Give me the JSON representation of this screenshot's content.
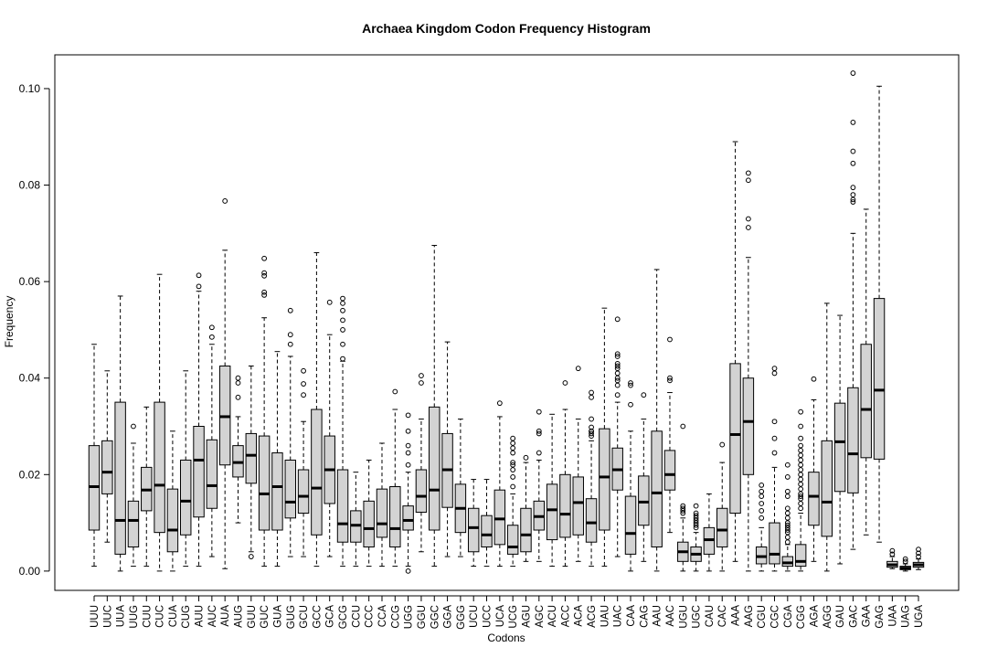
{
  "chart_data": {
    "type": "boxplot",
    "title": "Archaea  Kingdom Codon Frequency Histogram",
    "xlabel": "Codons",
    "ylabel": "Frequency",
    "ylim": [
      -0.004,
      0.107
    ],
    "yticks": [
      0.0,
      0.02,
      0.04,
      0.06,
      0.08,
      0.1
    ],
    "ytick_labels": [
      "0.00",
      "0.02",
      "0.04",
      "0.06",
      "0.08",
      "0.10"
    ],
    "grid": false,
    "box_color": "#d3d3d3",
    "line_color": "#000000",
    "categories": [
      "UUU",
      "UUC",
      "UUA",
      "UUG",
      "CUU",
      "CUC",
      "CUA",
      "CUG",
      "AUU",
      "AUC",
      "AUA",
      "AUG",
      "GUU",
      "GUC",
      "GUA",
      "GUG",
      "GCU",
      "GCC",
      "GCA",
      "GCG",
      "CCU",
      "CCC",
      "CCA",
      "CCG",
      "UGG",
      "GGU",
      "GGC",
      "GGA",
      "GGG",
      "UCU",
      "UCC",
      "UCA",
      "UCG",
      "AGU",
      "AGC",
      "ACU",
      "ACC",
      "ACA",
      "ACG",
      "UAU",
      "UAC",
      "CAA",
      "CAG",
      "AAU",
      "AAC",
      "UGU",
      "UGC",
      "CAU",
      "CAC",
      "AAA",
      "AAG",
      "CGU",
      "CGC",
      "CGA",
      "CGG",
      "AGA",
      "AGG",
      "GAU",
      "GAC",
      "GAA",
      "GAG",
      "UAA",
      "UAG",
      "UGA"
    ],
    "boxes": [
      {
        "min": 0.001,
        "q1": 0.0085,
        "median": 0.0175,
        "q3": 0.026,
        "max": 0.047,
        "outliers": []
      },
      {
        "min": 0.006,
        "q1": 0.016,
        "median": 0.0205,
        "q3": 0.027,
        "max": 0.0415,
        "outliers": []
      },
      {
        "min": 0.0,
        "q1": 0.0035,
        "median": 0.0105,
        "q3": 0.035,
        "max": 0.057,
        "outliers": []
      },
      {
        "min": 0.001,
        "q1": 0.005,
        "median": 0.0105,
        "q3": 0.0145,
        "max": 0.0265,
        "outliers": [
          0.03
        ]
      },
      {
        "min": 0.001,
        "q1": 0.0125,
        "median": 0.0168,
        "q3": 0.0215,
        "max": 0.034,
        "outliers": []
      },
      {
        "min": 0.0,
        "q1": 0.008,
        "median": 0.0178,
        "q3": 0.035,
        "max": 0.0615,
        "outliers": []
      },
      {
        "min": 0.0,
        "q1": 0.004,
        "median": 0.0085,
        "q3": 0.017,
        "max": 0.029,
        "outliers": []
      },
      {
        "min": 0.001,
        "q1": 0.0075,
        "median": 0.0145,
        "q3": 0.023,
        "max": 0.0415,
        "outliers": []
      },
      {
        "min": 0.001,
        "q1": 0.0112,
        "median": 0.023,
        "q3": 0.03,
        "max": 0.058,
        "outliers": [
          0.059,
          0.0613
        ]
      },
      {
        "min": 0.003,
        "q1": 0.013,
        "median": 0.0177,
        "q3": 0.0272,
        "max": 0.047,
        "outliers": [
          0.0485,
          0.0505
        ]
      },
      {
        "min": 0.0005,
        "q1": 0.022,
        "median": 0.032,
        "q3": 0.0425,
        "max": 0.0665,
        "outliers": [
          0.0767
        ]
      },
      {
        "min": 0.01,
        "q1": 0.0195,
        "median": 0.0225,
        "q3": 0.026,
        "max": 0.032,
        "outliers": [
          0.036,
          0.039,
          0.04
        ]
      },
      {
        "min": 0.004,
        "q1": 0.0182,
        "median": 0.024,
        "q3": 0.0285,
        "max": 0.0425,
        "outliers": [
          0.003
        ]
      },
      {
        "min": 0.001,
        "q1": 0.0085,
        "median": 0.016,
        "q3": 0.028,
        "max": 0.0525,
        "outliers": [
          0.0572,
          0.0578,
          0.0612,
          0.0618,
          0.0648
        ]
      },
      {
        "min": 0.001,
        "q1": 0.0085,
        "median": 0.0175,
        "q3": 0.0245,
        "max": 0.0455,
        "outliers": []
      },
      {
        "min": 0.003,
        "q1": 0.011,
        "median": 0.0143,
        "q3": 0.023,
        "max": 0.0445,
        "outliers": [
          0.047,
          0.049,
          0.054
        ]
      },
      {
        "min": 0.003,
        "q1": 0.012,
        "median": 0.0155,
        "q3": 0.021,
        "max": 0.031,
        "outliers": [
          0.0365,
          0.0388,
          0.0415
        ]
      },
      {
        "min": 0.001,
        "q1": 0.0075,
        "median": 0.0172,
        "q3": 0.0335,
        "max": 0.066,
        "outliers": []
      },
      {
        "min": 0.003,
        "q1": 0.014,
        "median": 0.021,
        "q3": 0.028,
        "max": 0.049,
        "outliers": [
          0.0557
        ]
      },
      {
        "min": 0.001,
        "q1": 0.006,
        "median": 0.0098,
        "q3": 0.021,
        "max": 0.0435,
        "outliers": [
          0.044,
          0.047,
          0.05,
          0.052,
          0.054,
          0.0555,
          0.0565
        ]
      },
      {
        "min": 0.001,
        "q1": 0.006,
        "median": 0.0095,
        "q3": 0.0125,
        "max": 0.0205,
        "outliers": []
      },
      {
        "min": 0.001,
        "q1": 0.005,
        "median": 0.0088,
        "q3": 0.0145,
        "max": 0.023,
        "outliers": []
      },
      {
        "min": 0.001,
        "q1": 0.007,
        "median": 0.0098,
        "q3": 0.017,
        "max": 0.0265,
        "outliers": []
      },
      {
        "min": 0.001,
        "q1": 0.005,
        "median": 0.0088,
        "q3": 0.0175,
        "max": 0.0335,
        "outliers": [
          0.0372
        ]
      },
      {
        "min": 0.001,
        "q1": 0.0085,
        "median": 0.0105,
        "q3": 0.0135,
        "max": 0.0205,
        "outliers": [
          0.0,
          0.022,
          0.0245,
          0.026,
          0.029,
          0.0323
        ]
      },
      {
        "min": 0.004,
        "q1": 0.0122,
        "median": 0.0155,
        "q3": 0.021,
        "max": 0.0315,
        "outliers": [
          0.039,
          0.0405
        ]
      },
      {
        "min": 0.001,
        "q1": 0.0085,
        "median": 0.0168,
        "q3": 0.034,
        "max": 0.0675,
        "outliers": []
      },
      {
        "min": 0.003,
        "q1": 0.0132,
        "median": 0.021,
        "q3": 0.0285,
        "max": 0.0475,
        "outliers": []
      },
      {
        "min": 0.003,
        "q1": 0.008,
        "median": 0.013,
        "q3": 0.018,
        "max": 0.0315,
        "outliers": []
      },
      {
        "min": 0.001,
        "q1": 0.004,
        "median": 0.009,
        "q3": 0.013,
        "max": 0.019,
        "outliers": []
      },
      {
        "min": 0.001,
        "q1": 0.005,
        "median": 0.0075,
        "q3": 0.0115,
        "max": 0.019,
        "outliers": []
      },
      {
        "min": 0.001,
        "q1": 0.0055,
        "median": 0.0108,
        "q3": 0.0168,
        "max": 0.032,
        "outliers": [
          0.0348
        ]
      },
      {
        "min": 0.001,
        "q1": 0.0035,
        "median": 0.005,
        "q3": 0.0095,
        "max": 0.016,
        "outliers": [
          0.0175,
          0.0195,
          0.021,
          0.022,
          0.0225,
          0.0245,
          0.0255,
          0.0265,
          0.0275
        ]
      },
      {
        "min": 0.002,
        "q1": 0.004,
        "median": 0.0075,
        "q3": 0.013,
        "max": 0.0225,
        "outliers": [
          0.0235
        ]
      },
      {
        "min": 0.002,
        "q1": 0.0085,
        "median": 0.0113,
        "q3": 0.0145,
        "max": 0.023,
        "outliers": [
          0.0245,
          0.0285,
          0.029,
          0.033
        ]
      },
      {
        "min": 0.001,
        "q1": 0.0065,
        "median": 0.0127,
        "q3": 0.018,
        "max": 0.0325,
        "outliers": []
      },
      {
        "min": 0.001,
        "q1": 0.007,
        "median": 0.0118,
        "q3": 0.02,
        "max": 0.0335,
        "outliers": [
          0.039
        ]
      },
      {
        "min": 0.002,
        "q1": 0.0075,
        "median": 0.0142,
        "q3": 0.0195,
        "max": 0.0315,
        "outliers": [
          0.042
        ]
      },
      {
        "min": 0.001,
        "q1": 0.006,
        "median": 0.01,
        "q3": 0.015,
        "max": 0.027,
        "outliers": [
          0.028,
          0.0285,
          0.029,
          0.029,
          0.0298,
          0.0315,
          0.036,
          0.037
        ]
      },
      {
        "min": 0.001,
        "q1": 0.0085,
        "median": 0.0195,
        "q3": 0.0295,
        "max": 0.0545,
        "outliers": []
      },
      {
        "min": 0.003,
        "q1": 0.0168,
        "median": 0.021,
        "q3": 0.0255,
        "max": 0.035,
        "outliers": [
          0.0365,
          0.0385,
          0.0395,
          0.04,
          0.041,
          0.042,
          0.0425,
          0.043,
          0.0445,
          0.045,
          0.0522
        ]
      },
      {
        "min": 0.0,
        "q1": 0.0035,
        "median": 0.0078,
        "q3": 0.0155,
        "max": 0.029,
        "outliers": [
          0.0345,
          0.0385,
          0.039
        ]
      },
      {
        "min": 0.002,
        "q1": 0.0095,
        "median": 0.0143,
        "q3": 0.0197,
        "max": 0.0315,
        "outliers": [
          0.0365
        ]
      },
      {
        "min": 0.0,
        "q1": 0.005,
        "median": 0.0162,
        "q3": 0.029,
        "max": 0.0625,
        "outliers": []
      },
      {
        "min": 0.008,
        "q1": 0.0168,
        "median": 0.02,
        "q3": 0.025,
        "max": 0.037,
        "outliers": [
          0.0395,
          0.04,
          0.048
        ]
      },
      {
        "min": 0.0,
        "q1": 0.002,
        "median": 0.004,
        "q3": 0.006,
        "max": 0.011,
        "outliers": [
          0.012,
          0.0125,
          0.013,
          0.0135,
          0.03
        ]
      },
      {
        "min": 0.0,
        "q1": 0.002,
        "median": 0.0035,
        "q3": 0.005,
        "max": 0.008,
        "outliers": [
          0.009,
          0.0095,
          0.01,
          0.0105,
          0.011,
          0.0115,
          0.012,
          0.0135
        ]
      },
      {
        "min": 0.0,
        "q1": 0.0035,
        "median": 0.0065,
        "q3": 0.009,
        "max": 0.016,
        "outliers": []
      },
      {
        "min": 0.0,
        "q1": 0.005,
        "median": 0.0085,
        "q3": 0.013,
        "max": 0.0225,
        "outliers": [
          0.0262
        ]
      },
      {
        "min": 0.002,
        "q1": 0.012,
        "median": 0.0283,
        "q3": 0.043,
        "max": 0.089,
        "outliers": []
      },
      {
        "min": 0.0,
        "q1": 0.02,
        "median": 0.031,
        "q3": 0.04,
        "max": 0.065,
        "outliers": [
          0.0712,
          0.073,
          0.081,
          0.0825
        ]
      },
      {
        "min": 0.0,
        "q1": 0.0015,
        "median": 0.003,
        "q3": 0.005,
        "max": 0.009,
        "outliers": [
          0.011,
          0.0125,
          0.014,
          0.0155,
          0.0165,
          0.0178
        ]
      },
      {
        "min": 0.0,
        "q1": 0.0015,
        "median": 0.0035,
        "q3": 0.01,
        "max": 0.0215,
        "outliers": [
          0.0245,
          0.0275,
          0.031,
          0.041,
          0.042
        ]
      },
      {
        "min": 0.0,
        "q1": 0.001,
        "median": 0.0017,
        "q3": 0.003,
        "max": 0.0055,
        "outliers": [
          0.006,
          0.007,
          0.008,
          0.0085,
          0.009,
          0.0095,
          0.01,
          0.011,
          0.012,
          0.013,
          0.0155,
          0.0165,
          0.0195,
          0.022
        ]
      },
      {
        "min": 0.0,
        "q1": 0.001,
        "median": 0.002,
        "q3": 0.0055,
        "max": 0.012,
        "outliers": [
          0.013,
          0.014,
          0.015,
          0.0155,
          0.016,
          0.017,
          0.018,
          0.019,
          0.02,
          0.021,
          0.022,
          0.023,
          0.024,
          0.025,
          0.026,
          0.0275,
          0.03,
          0.033
        ]
      },
      {
        "min": 0.002,
        "q1": 0.0095,
        "median": 0.0155,
        "q3": 0.0205,
        "max": 0.0355,
        "outliers": [
          0.0398
        ]
      },
      {
        "min": 0.0,
        "q1": 0.0072,
        "median": 0.0143,
        "q3": 0.027,
        "max": 0.0555,
        "outliers": []
      },
      {
        "min": 0.0015,
        "q1": 0.0165,
        "median": 0.0268,
        "q3": 0.0348,
        "max": 0.053,
        "outliers": []
      },
      {
        "min": 0.0045,
        "q1": 0.0162,
        "median": 0.0243,
        "q3": 0.038,
        "max": 0.07,
        "outliers": [
          0.0765,
          0.077,
          0.078,
          0.0795,
          0.0845,
          0.087,
          0.093,
          0.1032
        ]
      },
      {
        "min": 0.0075,
        "q1": 0.0235,
        "median": 0.0335,
        "q3": 0.047,
        "max": 0.075,
        "outliers": []
      },
      {
        "min": 0.006,
        "q1": 0.0232,
        "median": 0.0375,
        "q3": 0.0565,
        "max": 0.1005,
        "outliers": []
      },
      {
        "min": 0.0005,
        "q1": 0.0008,
        "median": 0.0013,
        "q3": 0.002,
        "max": 0.003,
        "outliers": [
          0.0035,
          0.0042
        ]
      },
      {
        "min": 0.0,
        "q1": 0.0003,
        "median": 0.0006,
        "q3": 0.001,
        "max": 0.0015,
        "outliers": [
          0.002,
          0.0025
        ]
      },
      {
        "min": 0.0003,
        "q1": 0.0008,
        "median": 0.0013,
        "q3": 0.0018,
        "max": 0.0025,
        "outliers": [
          0.003,
          0.0037,
          0.0045
        ]
      }
    ]
  }
}
